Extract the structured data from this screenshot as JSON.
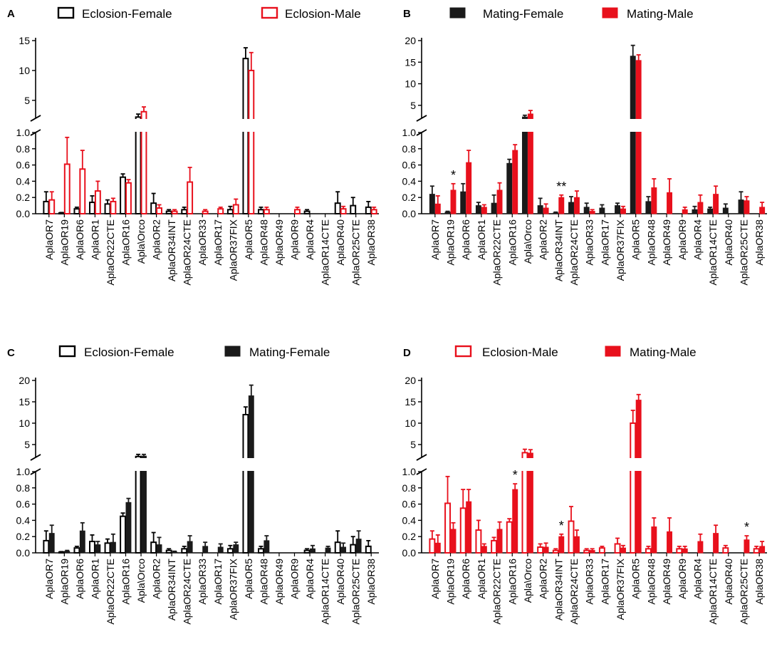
{
  "colors": {
    "black": "#000000",
    "red": "#e8101c"
  },
  "chart_data": [
    {
      "type": "bar",
      "panel": "A",
      "fills": [
        "open",
        "open"
      ],
      "legend": [
        "Eclosion-Female",
        "Eclosion-Male"
      ],
      "categories": [
        "AplaOR7",
        "AplaOR19",
        "AplaOR6",
        "AplaOR1",
        "AplaOR22CTE",
        "AplaOR16",
        "Apla\\Orco",
        "AplaOR2",
        "AplaOR34INT",
        "AplaOR24CTE",
        "AplaOR33",
        "AplaOR17",
        "AplaOR37FIX",
        "AplaOR5",
        "AplaOR48",
        "AplaOR49",
        "AplaOR9",
        "AplaOR4",
        "AplaOR14CTE",
        "AplaOR40",
        "AplaOR25CTE",
        "AplaOR38"
      ],
      "series": [
        {
          "name": "Eclosion-Female",
          "color": "#000000",
          "values": [
            0.15,
            0.01,
            0.06,
            0.14,
            0.12,
            0.45,
            2.2,
            0.13,
            0.03,
            0.05,
            0.0,
            0.0,
            0.05,
            12.0,
            0.05,
            0.0,
            0.0,
            0.03,
            0.0,
            0.13,
            0.1,
            0.08
          ],
          "errors": [
            0.12,
            0.005,
            0.02,
            0.08,
            0.05,
            0.04,
            0.5,
            0.12,
            0.02,
            0.03,
            0.0,
            0.0,
            0.04,
            1.8,
            0.03,
            0.0,
            0.0,
            0.02,
            0.0,
            0.14,
            0.1,
            0.07
          ]
        },
        {
          "name": "Eclosion-Male",
          "color": "#e8101c",
          "values": [
            0.17,
            0.61,
            0.55,
            0.28,
            0.15,
            0.38,
            3.1,
            0.07,
            0.03,
            0.39,
            0.03,
            0.06,
            0.11,
            10.0,
            0.05,
            0.0,
            0.05,
            0.0,
            0.0,
            0.06,
            0.0,
            0.05
          ],
          "errors": [
            0.1,
            0.33,
            0.23,
            0.12,
            0.04,
            0.04,
            0.8,
            0.04,
            0.02,
            0.18,
            0.02,
            0.02,
            0.07,
            3.0,
            0.03,
            0.0,
            0.03,
            0.0,
            0.0,
            0.03,
            0.0,
            0.03
          ]
        }
      ],
      "y_upper_ticks": [
        "5",
        "10",
        "15"
      ],
      "y_lower_ticks": [
        "0.0",
        "0.2",
        "0.4",
        "0.6",
        "0.8",
        "1.0"
      ],
      "y_upper_range": [
        2,
        15
      ],
      "y_lower_range": [
        0,
        1
      ],
      "significance": []
    },
    {
      "type": "bar",
      "panel": "B",
      "fills": [
        "solid",
        "solid"
      ],
      "legend": [
        "Mating-Female",
        "Mating-Male"
      ],
      "categories": [
        "AplaOR7",
        "AplaOR19",
        "AplaOR6",
        "AplaOR1",
        "AplaOR22CTE",
        "AplaOR16",
        "Apla\\Orco",
        "AplaOR2",
        "AplaOR34INT",
        "AplaOR24CTE",
        "AplaOR33",
        "AplaOR17",
        "AplaOR37FIX",
        "AplaOR5",
        "AplaOR48",
        "AplaOR49",
        "AplaOR9",
        "AplaOR4",
        "AplaOR14CTE",
        "AplaOR40",
        "AplaOR25CTE",
        "AplaOR38"
      ],
      "series": [
        {
          "name": "Mating-Female",
          "color": "#1a1a1a",
          "values": [
            0.24,
            0.02,
            0.27,
            0.1,
            0.13,
            0.62,
            2.3,
            0.1,
            0.01,
            0.14,
            0.08,
            0.07,
            0.1,
            16.4,
            0.15,
            0.0,
            0.0,
            0.05,
            0.06,
            0.07,
            0.17,
            0.0
          ],
          "errors": [
            0.1,
            0.01,
            0.1,
            0.04,
            0.1,
            0.05,
            0.4,
            0.09,
            0.01,
            0.07,
            0.05,
            0.04,
            0.03,
            2.5,
            0.06,
            0.0,
            0.0,
            0.04,
            0.02,
            0.05,
            0.1,
            0.0
          ]
        },
        {
          "name": "Mating-Male",
          "color": "#e8101c",
          "values": [
            0.12,
            0.29,
            0.63,
            0.08,
            0.29,
            0.78,
            3.0,
            0.07,
            0.2,
            0.2,
            0.03,
            0.0,
            0.06,
            15.4,
            0.32,
            0.26,
            0.05,
            0.14,
            0.24,
            0.0,
            0.16,
            0.08
          ],
          "errors": [
            0.1,
            0.08,
            0.15,
            0.03,
            0.09,
            0.07,
            0.8,
            0.05,
            0.03,
            0.08,
            0.02,
            0.0,
            0.03,
            1.3,
            0.11,
            0.17,
            0.03,
            0.09,
            0.1,
            0.0,
            0.05,
            0.06
          ]
        }
      ],
      "y_upper_ticks": [
        "5",
        "10",
        "15",
        "20"
      ],
      "y_lower_ticks": [
        "0.0",
        "0.2",
        "0.4",
        "0.6",
        "0.8",
        "1.0"
      ],
      "y_upper_range": [
        2,
        20
      ],
      "y_lower_range": [
        0,
        1
      ],
      "significance": [
        {
          "index": 1,
          "text": "*"
        },
        {
          "index": 8,
          "text": "**"
        }
      ]
    },
    {
      "type": "bar",
      "panel": "C",
      "fills": [
        "open",
        "solid"
      ],
      "legend": [
        "Eclosion-Female",
        "Mating-Female"
      ],
      "categories": [
        "AplaOR7",
        "AplaOR19",
        "AplaOR6",
        "AplaOR1",
        "AplaOR22CTE",
        "AplaOR16",
        "Apla\\Orco",
        "AplaOR2",
        "AplaOR34INT",
        "AplaOR24CTE",
        "AplaOR33",
        "AplaOR17",
        "AplaOR37FIX",
        "AplaOR5",
        "AplaOR48",
        "AplaOR49",
        "AplaOR9",
        "AplaOR4",
        "AplaOR14CTE",
        "AplaOR40",
        "AplaOR25CTE",
        "AplaOR38"
      ],
      "series": [
        {
          "name": "Eclosion-Female",
          "color": "#000000",
          "values": [
            0.15,
            0.01,
            0.06,
            0.14,
            0.12,
            0.45,
            2.2,
            0.13,
            0.03,
            0.05,
            0.0,
            0.0,
            0.05,
            12.0,
            0.05,
            0.0,
            0.0,
            0.03,
            0.0,
            0.13,
            0.1,
            0.08
          ],
          "errors": [
            0.12,
            0.005,
            0.02,
            0.08,
            0.05,
            0.04,
            0.5,
            0.12,
            0.02,
            0.03,
            0.0,
            0.0,
            0.04,
            1.8,
            0.03,
            0.0,
            0.0,
            0.02,
            0.0,
            0.14,
            0.1,
            0.07
          ]
        },
        {
          "name": "Mating-Female",
          "color": "#1a1a1a",
          "values": [
            0.24,
            0.02,
            0.27,
            0.1,
            0.13,
            0.62,
            2.3,
            0.1,
            0.01,
            0.14,
            0.08,
            0.07,
            0.1,
            16.4,
            0.15,
            0.0,
            0.0,
            0.05,
            0.06,
            0.07,
            0.17,
            0.0
          ],
          "errors": [
            0.1,
            0.01,
            0.1,
            0.04,
            0.1,
            0.05,
            0.4,
            0.09,
            0.01,
            0.07,
            0.05,
            0.04,
            0.03,
            2.5,
            0.06,
            0.0,
            0.0,
            0.04,
            0.02,
            0.05,
            0.1,
            0.0
          ]
        }
      ],
      "y_upper_ticks": [
        "5",
        "10",
        "15",
        "20"
      ],
      "y_lower_ticks": [
        "0.0",
        "0.2",
        "0.4",
        "0.6",
        "0.8",
        "1.0"
      ],
      "y_upper_range": [
        2,
        20
      ],
      "y_lower_range": [
        0,
        1
      ],
      "significance": []
    },
    {
      "type": "bar",
      "panel": "D",
      "fills": [
        "open",
        "solid"
      ],
      "legend": [
        "Eclosion-Male",
        "Mating-Male"
      ],
      "categories": [
        "AplaOR7",
        "AplaOR19",
        "AplaOR6",
        "AplaOR1",
        "AplaOR22CTE",
        "AplaOR16",
        "Apla\\Orco",
        "AplaOR2",
        "AplaOR34INT",
        "AplaOR24CTE",
        "AplaOR33",
        "AplaOR17",
        "AplaOR37FIX",
        "AplaOR5",
        "AplaOR48",
        "AplaOR49",
        "AplaOR9",
        "AplaOR4",
        "AplaOR14CTE",
        "AplaOR40",
        "AplaOR25CTE",
        "AplaOR38"
      ],
      "series": [
        {
          "name": "Eclosion-Male",
          "color": "#e8101c",
          "values": [
            0.17,
            0.61,
            0.55,
            0.28,
            0.15,
            0.38,
            3.1,
            0.07,
            0.03,
            0.39,
            0.03,
            0.06,
            0.11,
            10.0,
            0.05,
            0.0,
            0.05,
            0.0,
            0.0,
            0.06,
            0.0,
            0.05
          ],
          "errors": [
            0.1,
            0.33,
            0.23,
            0.12,
            0.04,
            0.04,
            0.8,
            0.04,
            0.02,
            0.18,
            0.02,
            0.02,
            0.07,
            3.0,
            0.03,
            0.0,
            0.03,
            0.0,
            0.0,
            0.03,
            0.0,
            0.03
          ]
        },
        {
          "name": "Mating-Male",
          "color": "#e8101c",
          "values": [
            0.12,
            0.29,
            0.63,
            0.08,
            0.29,
            0.78,
            3.0,
            0.07,
            0.2,
            0.2,
            0.03,
            0.0,
            0.06,
            15.4,
            0.32,
            0.26,
            0.05,
            0.14,
            0.24,
            0.0,
            0.16,
            0.08
          ],
          "errors": [
            0.1,
            0.08,
            0.15,
            0.03,
            0.09,
            0.07,
            0.8,
            0.05,
            0.03,
            0.08,
            0.02,
            0.0,
            0.03,
            1.3,
            0.11,
            0.17,
            0.03,
            0.09,
            0.1,
            0.0,
            0.05,
            0.06
          ]
        }
      ],
      "y_upper_ticks": [
        "5",
        "10",
        "15",
        "20"
      ],
      "y_lower_ticks": [
        "0.0",
        "0.2",
        "0.4",
        "0.6",
        "0.8",
        "1.0"
      ],
      "y_upper_range": [
        2,
        20
      ],
      "y_lower_range": [
        0,
        1
      ],
      "significance": [
        {
          "index": 5,
          "text": "*"
        },
        {
          "index": 8,
          "text": "*"
        },
        {
          "index": 20,
          "text": "*"
        }
      ]
    }
  ]
}
